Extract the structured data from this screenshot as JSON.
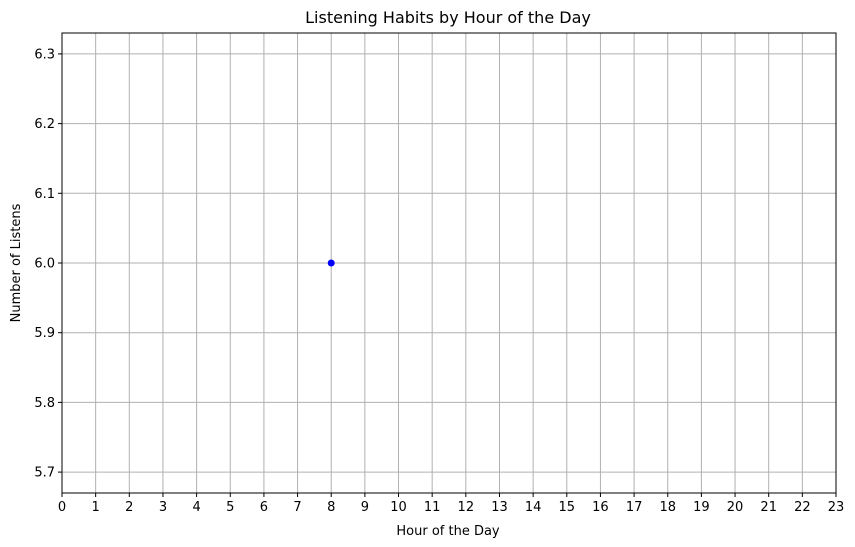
{
  "chart_data": {
    "type": "scatter",
    "title": "Listening Habits by Hour of the Day",
    "xlabel": "Hour of the Day",
    "ylabel": "Number of Listens",
    "xlim": [
      0,
      23
    ],
    "ylim": [
      5.67,
      6.33
    ],
    "xticks": [
      0,
      1,
      2,
      3,
      4,
      5,
      6,
      7,
      8,
      9,
      10,
      11,
      12,
      13,
      14,
      15,
      16,
      17,
      18,
      19,
      20,
      21,
      22,
      23
    ],
    "yticks": [
      5.7,
      5.8,
      5.9,
      6.0,
      6.1,
      6.2,
      6.3
    ],
    "ytick_labels": [
      "5.7",
      "5.8",
      "5.9",
      "6.0",
      "6.1",
      "6.2",
      "6.3"
    ],
    "grid": true,
    "series": [
      {
        "color": "#0000ff",
        "points": [
          {
            "x": 8,
            "y": 6.0
          }
        ]
      }
    ]
  }
}
